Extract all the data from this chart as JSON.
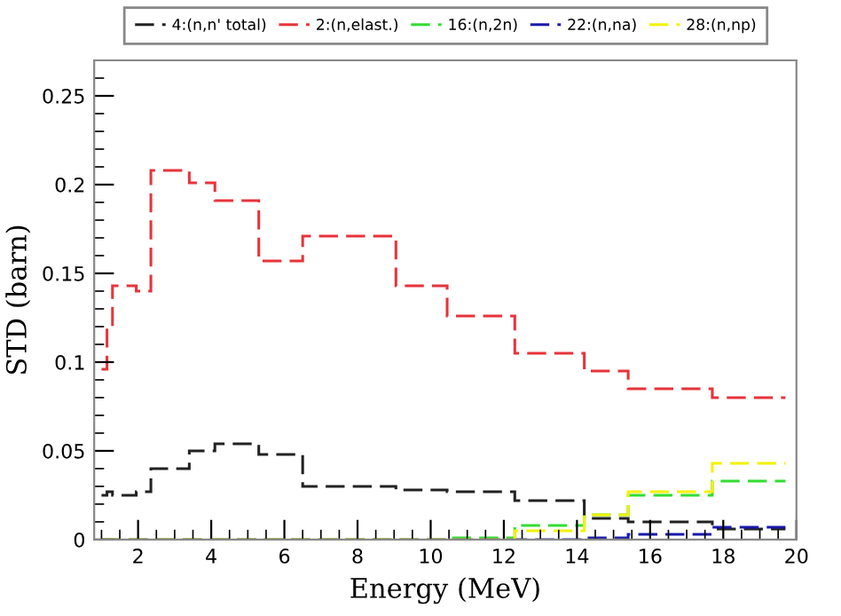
{
  "chart_data": {
    "type": "histogram",
    "xlabel": "Energy (MeV)",
    "ylabel": "STD (barn)",
    "bins": [
      1.0,
      1.15,
      1.3,
      1.95,
      2.35,
      3.4,
      4.1,
      5.3,
      6.5,
      9.05,
      10.45,
      12.3,
      14.2,
      15.4,
      17.7,
      19.7
    ],
    "series": [
      {
        "name": "4:(n,n' total)",
        "color": "#222222",
        "values": [
          0.025,
          0.027,
          0.025,
          0.027,
          0.04,
          0.05,
          0.054,
          0.048,
          0.03,
          0.028,
          0.027,
          0.022,
          0.012,
          0.01,
          0.006
        ]
      },
      {
        "name": "2:(n,elast.)",
        "color": "#e8333a",
        "values": [
          0.096,
          0.119,
          0.143,
          0.14,
          0.208,
          0.201,
          0.191,
          0.157,
          0.171,
          0.143,
          0.126,
          0.105,
          0.095,
          0.085,
          0.08
        ]
      },
      {
        "name": "16:(n,2n)",
        "color": "#33dd33",
        "values": [
          0,
          0,
          0,
          0,
          0,
          0,
          0,
          0,
          0,
          0,
          0.001,
          0.008,
          0.014,
          0.025,
          0.033
        ]
      },
      {
        "name": "22:(n,na)",
        "color": "#1a1aaa",
        "values": [
          0,
          0,
          0,
          0,
          0,
          0,
          0,
          0,
          0,
          0,
          0,
          0,
          0.001,
          0.003,
          0.007
        ]
      },
      {
        "name": "28:(n,np)",
        "color": "#f2f200",
        "values": [
          0,
          0,
          0,
          0,
          0,
          0,
          0,
          0,
          0,
          0,
          0,
          0.005,
          0.014,
          0.027,
          0.043
        ]
      }
    ],
    "xlim": [
      0.8,
      20
    ],
    "ylim": [
      0,
      0.27
    ],
    "xticks": [
      2,
      4,
      6,
      8,
      10,
      12,
      14,
      16,
      18,
      20
    ],
    "yticks": [
      0,
      0.05,
      0.1,
      0.15,
      0.2,
      0.25
    ],
    "line_style": "dashed",
    "legend": "top",
    "grid": false
  }
}
